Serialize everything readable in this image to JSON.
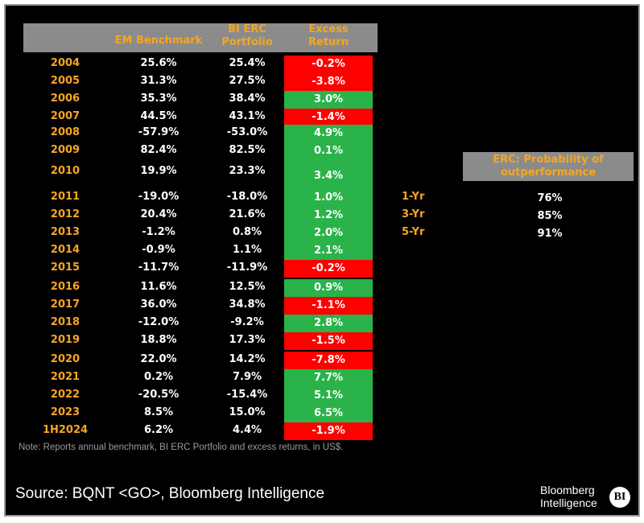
{
  "chart_data": {
    "type": "table",
    "columns": [
      "",
      "EM Benchmark",
      "BI ERC Portfolio",
      "Excess Return"
    ],
    "header": {
      "em": "EM Benchmark",
      "erc_line1": "BI ERC",
      "erc_line2": "Portfolio",
      "excess_line1": "Excess",
      "excess_line2": "Return"
    },
    "rows": [
      {
        "year": "2004",
        "em": "25.6%",
        "erc": "25.4%",
        "excess": "-0.2%",
        "excess_value": -0.2
      },
      {
        "year": "2005",
        "em": "31.3%",
        "erc": "27.5%",
        "excess": "-3.8%",
        "excess_value": -3.8
      },
      {
        "year": "2006",
        "em": "35.3%",
        "erc": "38.4%",
        "excess": "3.0%",
        "excess_value": 3.0
      },
      {
        "year": "2007",
        "em": "44.5%",
        "erc": "43.1%",
        "excess": "-1.4%",
        "excess_value": -1.4
      },
      {
        "year": "2008",
        "em": "-57.9%",
        "erc": "-53.0%",
        "excess": "4.9%",
        "excess_value": 4.9
      },
      {
        "year": "2009",
        "em": "82.4%",
        "erc": "82.5%",
        "excess": "0.1%",
        "excess_value": 0.1
      },
      {
        "year": "2010",
        "em": "19.9%",
        "erc": "23.3%",
        "excess": "3.4%",
        "excess_value": 3.4
      },
      {
        "year": "2011",
        "em": "-19.0%",
        "erc": "-18.0%",
        "excess": "1.0%",
        "excess_value": 1.0
      },
      {
        "year": "2012",
        "em": "20.4%",
        "erc": "21.6%",
        "excess": "1.2%",
        "excess_value": 1.2
      },
      {
        "year": "2013",
        "em": "-1.2%",
        "erc": "0.8%",
        "excess": "2.0%",
        "excess_value": 2.0
      },
      {
        "year": "2014",
        "em": "-0.9%",
        "erc": "1.1%",
        "excess": "2.1%",
        "excess_value": 2.1
      },
      {
        "year": "2015",
        "em": "-11.7%",
        "erc": "-11.9%",
        "excess": "-0.2%",
        "excess_value": -0.2
      },
      {
        "year": "2016",
        "em": "11.6%",
        "erc": "12.5%",
        "excess": "0.9%",
        "excess_value": 0.9
      },
      {
        "year": "2017",
        "em": "36.0%",
        "erc": "34.8%",
        "excess": "-1.1%",
        "excess_value": -1.1
      },
      {
        "year": "2018",
        "em": "-12.0%",
        "erc": "-9.2%",
        "excess": "2.8%",
        "excess_value": 2.8
      },
      {
        "year": "2019",
        "em": "18.8%",
        "erc": "17.3%",
        "excess": "-1.5%",
        "excess_value": -1.5
      },
      {
        "year": "2020",
        "em": "22.0%",
        "erc": "14.2%",
        "excess": "-7.8%",
        "excess_value": -7.8
      },
      {
        "year": "2021",
        "em": "0.2%",
        "erc": "7.9%",
        "excess": "7.7%",
        "excess_value": 7.7
      },
      {
        "year": "2022",
        "em": "-20.5%",
        "erc": "-15.4%",
        "excess": "5.1%",
        "excess_value": 5.1
      },
      {
        "year": "2023",
        "em": "8.5%",
        "erc": "15.0%",
        "excess": "6.5%",
        "excess_value": 6.5
      },
      {
        "year": "1H2024",
        "em": "6.2%",
        "erc": "4.4%",
        "excess": "-1.9%",
        "excess_value": -1.9
      }
    ],
    "probability": {
      "title_line1": "ERC: Probability of",
      "title_line2": "outperformance",
      "items": [
        {
          "label": "1-Yr",
          "value": "76%"
        },
        {
          "label": "3-Yr",
          "value": "85%"
        },
        {
          "label": "5-Yr",
          "value": "91%"
        }
      ]
    },
    "colors": {
      "positive": "#2ab34a",
      "negative": "#ff0000",
      "header_bg": "#8b8b8b",
      "label": "#f5a623"
    }
  },
  "note": "Note: Reports annual benchmark, BI ERC Portfolio and excess returns, in US$.",
  "source": "Source: BQNT <GO>, Bloomberg Intelligence",
  "brand": {
    "line1": "Bloomberg",
    "line2": "Intelligence",
    "badge": "BI"
  }
}
